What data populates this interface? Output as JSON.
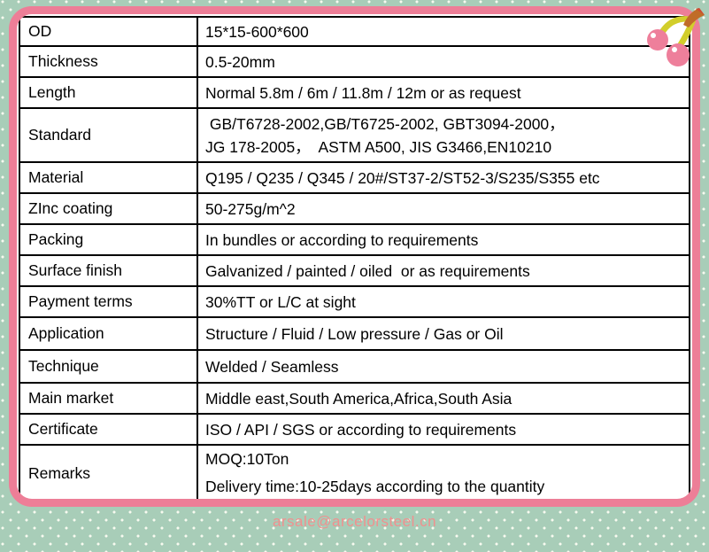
{
  "table": {
    "rows": [
      {
        "label": "OD",
        "lines": [
          "15*15-600*600"
        ]
      },
      {
        "label": "Thickness",
        "lines": [
          "0.5-20mm"
        ]
      },
      {
        "label": "Length",
        "lines": [
          "Normal 5.8m / 6m / 11.8m / 12m or as request"
        ]
      },
      {
        "label": "Standard",
        "lines": [
          " GB/T6728-2002,GB/T6725-2002, GBT3094-2000，",
          "JG 178-2005，  ASTM A500, JIS G3466,EN10210"
        ]
      },
      {
        "label": "Material",
        "lines": [
          "Q195 / Q235 / Q345 / 20#/ST37-2/ST52-3/S235/S355 etc"
        ]
      },
      {
        "label": "ZInc coating",
        "lines": [
          "50-275g/m^2"
        ]
      },
      {
        "label": "Packing",
        "lines": [
          "In bundles or according to requirements"
        ]
      },
      {
        "label": "Surface finish",
        "lines": [
          "Galvanized / painted / oiled  or as requirements"
        ]
      },
      {
        "label": "Payment terms",
        "lines": [
          "30%TT or L/C at sight"
        ]
      },
      {
        "label": "Application",
        "lines": [
          "Structure / Fluid / Low pressure / Gas or Oil"
        ]
      },
      {
        "label": "Technique",
        "lines": [
          "Welded / Seamless"
        ]
      },
      {
        "label": "Main market",
        "lines": [
          "Middle east,South America,Africa,South Asia"
        ]
      },
      {
        "label": "Certificate",
        "lines": [
          "ISO / API / SGS or according to requirements"
        ]
      },
      {
        "label": "Remarks",
        "lines": [
          "MOQ:10Ton",
          "Delivery time:10-25days according to the quantity"
        ]
      }
    ]
  },
  "footer": {
    "email": "arsale@arcelorsteel.cn"
  },
  "icons": {
    "cherries": "cherries-icon"
  },
  "colors": {
    "background_green": "#a8cdb8",
    "dot_white": "#f7faef",
    "card_pink": "#ed7e97",
    "table_line_black": "#000000",
    "email_pink": "#f0908f",
    "cherry_pink": "#ee7f9b",
    "stem_yellow_green": "#d2ce2b",
    "leaf_orange": "#c06c28",
    "leaf_tip_red": "#ce4a33"
  }
}
